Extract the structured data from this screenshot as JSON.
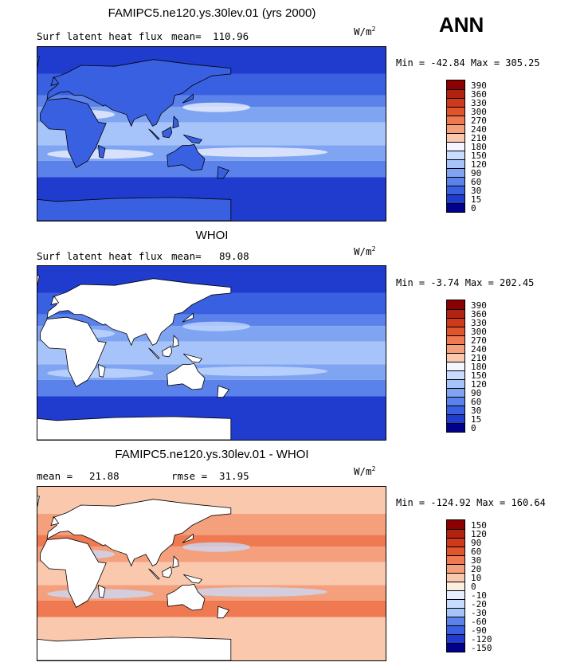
{
  "season": "ANN",
  "chart_data": [
    {
      "type": "heatmap",
      "title": "FAMIPC5.ne120.ys.30lev.01 (yrs 2000)",
      "left_label": "Surf latent heat flux",
      "stat_label": "mean=",
      "stat_value": "110.96",
      "units_base": "W/m",
      "units_exp": "2",
      "minmax": "Min = -42.84 Max = 305.25",
      "min": -42.84,
      "max": 305.25,
      "colorbar_levels": [
        "390",
        "360",
        "330",
        "300",
        "270",
        "240",
        "210",
        "180",
        "150",
        "120",
        "90",
        "60",
        "30",
        "15",
        "0"
      ],
      "colorbar_colors": [
        "#8b0000",
        "#b22210",
        "#d03a1c",
        "#e0552c",
        "#ef7a52",
        "#f4a07c",
        "#fac8ad",
        "#f4f6ff",
        "#c8dcff",
        "#a7c4fa",
        "#7fa4f2",
        "#5a82ea",
        "#3a60e2",
        "#1f3ccf",
        "#00008b"
      ],
      "ocean_colors": [
        "#1f3ccf",
        "#3a60e2",
        "#5a82ea",
        "#7fa4f2",
        "#a7c4fa",
        "#c8dcff",
        "#f4f6ff",
        "#fac8ad"
      ],
      "land_color": "#3a60e2"
    },
    {
      "type": "heatmap",
      "title": "WHOI",
      "left_label": "Surf latent heat flux",
      "stat_label": "mean=",
      "stat_value": "89.08",
      "units_base": "W/m",
      "units_exp": "2",
      "minmax": "Min = -3.74 Max = 202.45",
      "min": -3.74,
      "max": 202.45,
      "colorbar_levels": [
        "390",
        "360",
        "330",
        "300",
        "270",
        "240",
        "210",
        "180",
        "150",
        "120",
        "90",
        "60",
        "30",
        "15",
        "0"
      ],
      "colorbar_colors": [
        "#8b0000",
        "#b22210",
        "#d03a1c",
        "#e0552c",
        "#ef7a52",
        "#f4a07c",
        "#fac8ad",
        "#f4f6ff",
        "#c8dcff",
        "#a7c4fa",
        "#7fa4f2",
        "#5a82ea",
        "#3a60e2",
        "#1f3ccf",
        "#00008b"
      ],
      "ocean_colors": [
        "#1f3ccf",
        "#3a60e2",
        "#5a82ea",
        "#7fa4f2",
        "#a7c4fa",
        "#c8dcff",
        "#c8dcff",
        "#a7c4fa"
      ],
      "land_color": "#ffffff"
    },
    {
      "type": "heatmap",
      "title": "FAMIPC5.ne120.ys.30lev.01 - WHOI",
      "left_label": "mean =",
      "left_value": "21.88",
      "stat_label": "rmse =",
      "stat_value": "31.95",
      "units_base": "W/m",
      "units_exp": "2",
      "minmax": "Min = -124.92 Max = 160.64",
      "min": -124.92,
      "max": 160.64,
      "colorbar_levels": [
        "150",
        "120",
        "90",
        "60",
        "30",
        "20",
        "10",
        "0",
        "-10",
        "-20",
        "-30",
        "-60",
        "-90",
        "-120",
        "-150"
      ],
      "colorbar_colors": [
        "#8b0000",
        "#b22210",
        "#d03a1c",
        "#e0552c",
        "#ef7a52",
        "#f4a07c",
        "#fac8ad",
        "#fdeee2",
        "#e6eeff",
        "#c8dcff",
        "#a7c4fa",
        "#5a82ea",
        "#3a60e2",
        "#1f3ccf",
        "#00008b"
      ],
      "ocean_colors": [
        "#fac8ad",
        "#f4a07c",
        "#ef7a52",
        "#f4a07c",
        "#fac8ad",
        "#fdeee2",
        "#c8dcff",
        "#fac8ad"
      ],
      "land_color": "#ffffff"
    }
  ]
}
